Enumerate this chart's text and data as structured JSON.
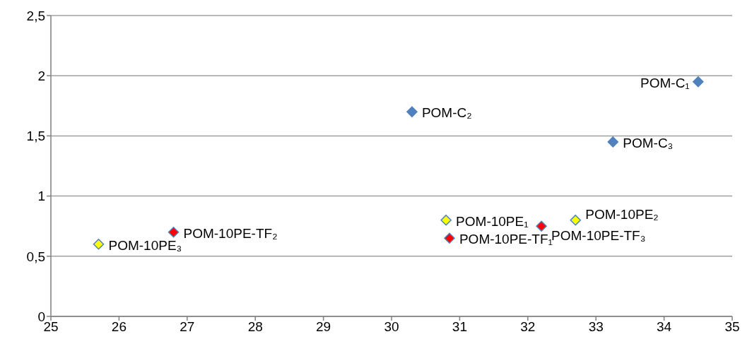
{
  "chart_data": {
    "type": "scatter",
    "marker": "diamond",
    "grid": "y",
    "legend": false,
    "series": [
      {
        "color": "#4f81bd",
        "x": [
          34.5,
          30.3,
          33.25
        ],
        "values": [
          1.95,
          1.7,
          1.45
        ]
      },
      {
        "color": "#ffff00",
        "x": [
          30.8,
          32.7,
          25.7
        ],
        "values": [
          0.8,
          0.8,
          0.6
        ]
      },
      {
        "color": "#ff0000",
        "x": [
          30.85,
          26.8,
          32.2
        ],
        "values": [
          0.65,
          0.7,
          0.75
        ]
      }
    ],
    "xlim": [
      25,
      35
    ],
    "xticks": [
      25,
      26,
      27,
      28,
      29,
      30,
      31,
      32,
      33,
      34,
      35
    ],
    "ylim": [
      0,
      2.5
    ],
    "yticks": [
      0,
      {
        "value": 0.5,
        "label": "0,5"
      },
      1,
      {
        "value": 1.5,
        "label": "1,5"
      },
      2,
      {
        "value": 2.5,
        "label": "2,5"
      }
    ],
    "annotations": [
      {
        "text": "POM-C₁",
        "x": 34.5,
        "y": 1.95
      },
      {
        "text": "POM-C₂",
        "x": 30.3,
        "y": 1.7
      },
      {
        "text": "POM-C₃",
        "x": 33.25,
        "y": 1.45
      },
      {
        "text": "POM-10PE₁",
        "x": 30.8,
        "y": 0.8
      },
      {
        "text": "POM-10PE₂",
        "x": 32.7,
        "y": 0.8
      },
      {
        "text": "POM-10PE₃",
        "x": 25.7,
        "y": 0.6
      },
      {
        "text": "POM-10PE-TF₁",
        "x": 30.85,
        "y": 0.65
      },
      {
        "text": "POM-10PE-TF₂",
        "x": 26.8,
        "y": 0.7
      },
      {
        "text": "POM-10PE-TF₃",
        "x": 32.2,
        "y": 0.75
      }
    ]
  }
}
